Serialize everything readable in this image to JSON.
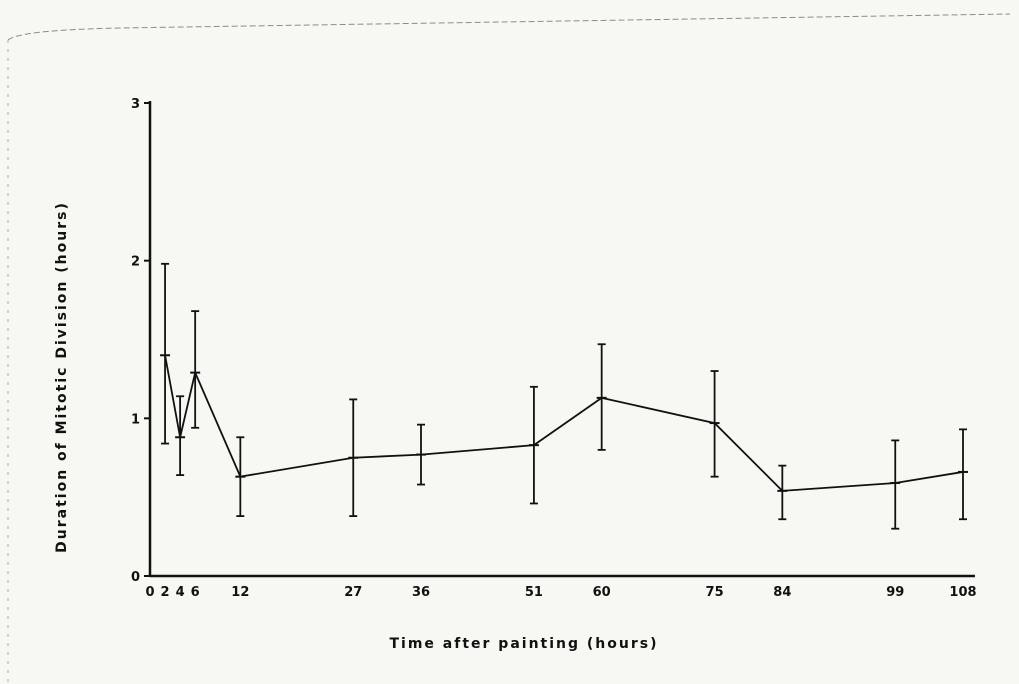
{
  "chart_data": {
    "type": "line",
    "title": "",
    "xlabel": "Time after painting (hours)",
    "ylabel": "Duration of  Mitotic Division (hours)",
    "ylim": [
      0,
      3
    ],
    "xlim": [
      0,
      108
    ],
    "x_ticks": [
      0,
      2,
      4,
      6,
      12,
      27,
      36,
      51,
      60,
      75,
      84,
      99,
      108
    ],
    "x_tick_labels": [
      "0",
      "2",
      "4",
      "6",
      "12",
      "27",
      "36",
      "51",
      "60",
      "75",
      "84",
      "99",
      "108"
    ],
    "y_ticks": [
      0,
      1,
      2,
      3
    ],
    "y_tick_labels": [
      "0",
      "1",
      "2",
      "3"
    ],
    "grid": false,
    "legend": "none",
    "series": [
      {
        "x": [
          2,
          4,
          6,
          12,
          27,
          36,
          51,
          60,
          75,
          84,
          99,
          108
        ],
        "y": [
          1.4,
          0.88,
          1.29,
          0.63,
          0.75,
          0.77,
          0.83,
          1.13,
          0.97,
          0.54,
          0.59,
          0.66
        ],
        "err_low": [
          0.84,
          0.64,
          0.94,
          0.38,
          0.38,
          0.58,
          0.46,
          0.8,
          0.63,
          0.36,
          0.3,
          0.36
        ],
        "err_high": [
          1.98,
          1.14,
          1.68,
          0.88,
          1.12,
          0.96,
          1.2,
          1.47,
          1.3,
          0.7,
          0.86,
          0.93
        ]
      }
    ]
  }
}
